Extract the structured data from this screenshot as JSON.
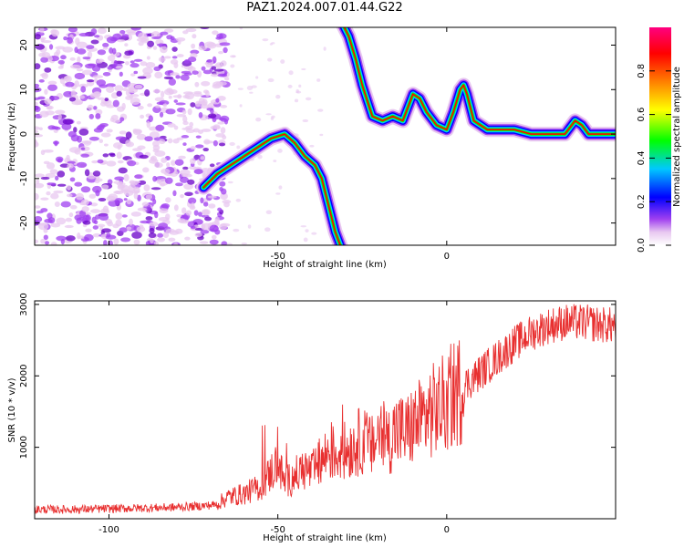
{
  "title": "PAZ1.2024.007.01.44.G22",
  "chart_data": [
    {
      "type": "heatmap",
      "title": "PAZ1.2024.007.01.44.G22",
      "xlabel": "Height of straight line (km)",
      "ylabel": "Frequency (Hz)",
      "xlim": [
        -122,
        50
      ],
      "ylim": [
        -25,
        24
      ],
      "x_ticks": [
        -100,
        -50,
        0
      ],
      "y_ticks": [
        -20,
        -10,
        0,
        10,
        20
      ],
      "grid": false,
      "colorbar": {
        "label": "Normalized spectral amplitude",
        "range": [
          0.0,
          1.0
        ],
        "ticks": [
          "0.0",
          "0.2",
          "0.4",
          "0.6",
          "0.8"
        ],
        "colors": [
          "#ffffff",
          "#e8c8f0",
          "#a040f0",
          "#0000ff",
          "#00c8ff",
          "#00ff00",
          "#ffff00",
          "#ff8000",
          "#ff0000",
          "#ff0080"
        ]
      },
      "noise_region_x": [
        -122,
        -65
      ],
      "ridge": {
        "x": [
          -72,
          -68,
          -64,
          -60,
          -56,
          -52,
          -48,
          -45,
          -42,
          -39,
          -37,
          -35,
          -33,
          -31
        ],
        "y": [
          -12,
          -9,
          -7,
          -5,
          -3,
          -1,
          0,
          -2,
          -5,
          -7,
          -10,
          -16,
          -22,
          -26
        ]
      },
      "upper_ridge": {
        "x": [
          -31,
          -29,
          -27,
          -25,
          -22,
          -19,
          -16,
          -13,
          -10,
          -8,
          -6,
          -3,
          0,
          2,
          4,
          5,
          6,
          8,
          10,
          12,
          15,
          20,
          25,
          30,
          35,
          38,
          40,
          42,
          45,
          50
        ],
        "y": [
          25,
          22,
          17,
          11,
          4,
          3,
          4,
          3,
          9,
          8,
          5,
          2,
          1,
          5,
          10,
          11,
          9,
          3,
          2,
          1,
          1,
          1,
          0,
          0,
          0,
          3,
          2,
          0,
          0,
          0
        ]
      }
    },
    {
      "type": "line",
      "xlabel": "Height of straight line (km)",
      "ylabel": "SNR (10 * v/v)",
      "xlim": [
        -122,
        50
      ],
      "ylim": [
        0,
        3050
      ],
      "x_ticks": [
        -100,
        -50,
        0
      ],
      "y_ticks": [
        1000,
        2000,
        3000
      ],
      "grid": false,
      "series": [
        {
          "color": "#e83030",
          "x": [
            -122,
            -110,
            -100,
            -90,
            -80,
            -72,
            -68,
            -65,
            -60,
            -55,
            -52,
            -50,
            -48,
            -45,
            -42,
            -40,
            -37,
            -35,
            -33,
            -30,
            -27,
            -25,
            -22,
            -20,
            -17,
            -15,
            -12,
            -10,
            -7,
            -5,
            -2,
            0,
            5,
            10,
            15,
            20,
            25,
            30,
            35,
            40,
            45,
            50
          ],
          "y": [
            130,
            130,
            140,
            150,
            160,
            180,
            200,
            300,
            350,
            450,
            650,
            800,
            500,
            600,
            700,
            650,
            800,
            950,
            900,
            950,
            1050,
            1100,
            1000,
            1200,
            1100,
            1250,
            1200,
            1300,
            1400,
            1500,
            1550,
            1650,
            1850,
            2050,
            2250,
            2450,
            2600,
            2700,
            2750,
            2750,
            2720,
            2700
          ]
        }
      ]
    }
  ]
}
